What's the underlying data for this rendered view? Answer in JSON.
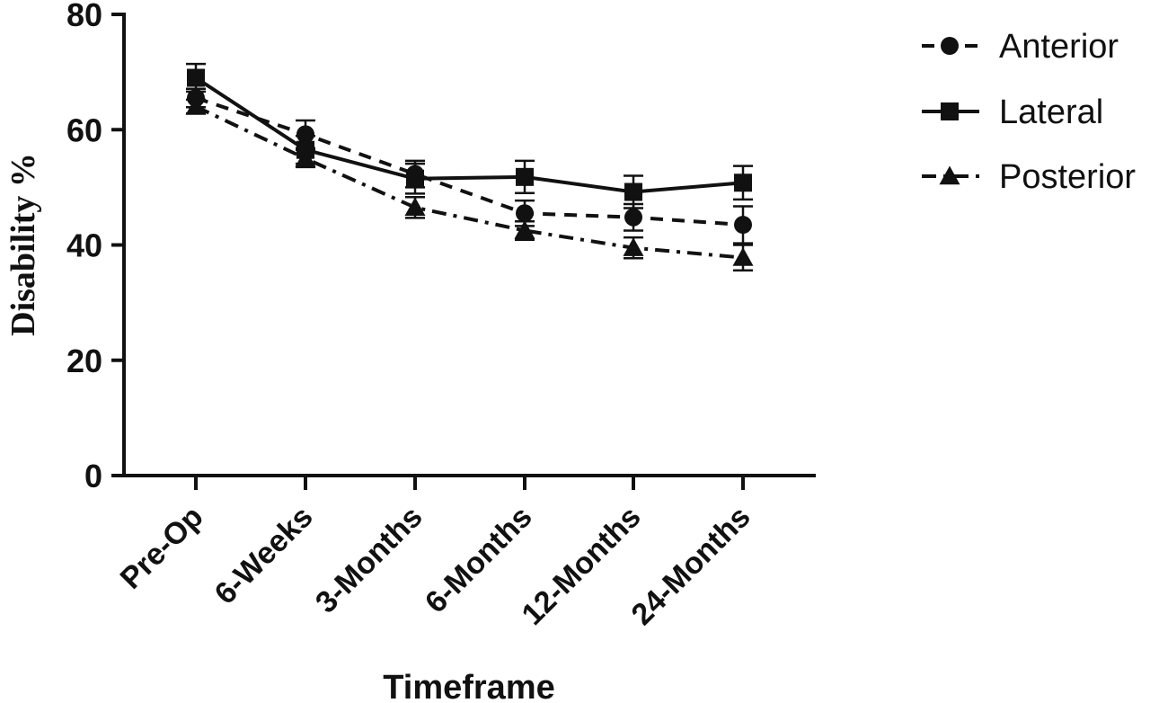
{
  "chart_data": {
    "type": "line",
    "xlabel": "Timeframe",
    "ylabel": "Disability %",
    "ylim": [
      0,
      80
    ],
    "yticks": [
      "0",
      "20",
      "40",
      "60",
      "80"
    ],
    "categories": [
      "Pre-Op",
      "6-Weeks",
      "3-Months",
      "6-Months",
      "12-Months",
      "24-Months"
    ],
    "legend_position": "top-right",
    "grid": false,
    "series": [
      {
        "name": "Anterior",
        "marker": "circle",
        "line_style": "dashed",
        "values": [
          65.5,
          59.2,
          52.3,
          45.5,
          44.8,
          43.5
        ],
        "errors": [
          1.6,
          2.4,
          2.3,
          2.2,
          2.3,
          3.2
        ]
      },
      {
        "name": "Lateral",
        "marker": "square",
        "line_style": "solid",
        "values": [
          69.0,
          56.5,
          51.5,
          51.8,
          49.2,
          50.8
        ],
        "errors": [
          2.4,
          2.4,
          2.6,
          2.8,
          2.8,
          2.9
        ]
      },
      {
        "name": "Posterior",
        "marker": "triangle",
        "line_style": "dashdot",
        "values": [
          64.0,
          55.0,
          46.5,
          42.5,
          39.5,
          37.8
        ],
        "errors": [
          1.2,
          1.5,
          1.8,
          1.6,
          1.8,
          2.2
        ]
      }
    ]
  }
}
